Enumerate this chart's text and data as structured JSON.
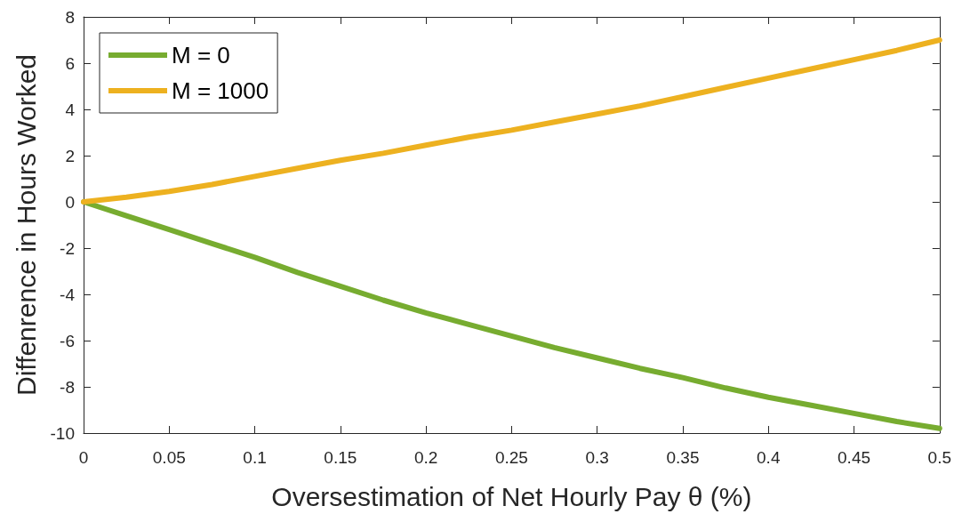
{
  "chart_data": {
    "type": "line",
    "xlabel": "Oversestimation of Net Hourly Pay θ (%)",
    "ylabel": "Diffenrence in Hours Worked",
    "x": [
      0,
      0.025,
      0.05,
      0.075,
      0.1,
      0.125,
      0.15,
      0.175,
      0.2,
      0.225,
      0.25,
      0.275,
      0.3,
      0.325,
      0.35,
      0.375,
      0.4,
      0.425,
      0.45,
      0.475,
      0.5
    ],
    "series": [
      {
        "name": "M = 0",
        "color": "#77ac30",
        "values": [
          0,
          -0.6,
          -1.2,
          -1.8,
          -2.4,
          -3.05,
          -3.65,
          -4.25,
          -4.8,
          -5.3,
          -5.8,
          -6.3,
          -6.75,
          -7.2,
          -7.6,
          -8.05,
          -8.45,
          -8.8,
          -9.15,
          -9.5,
          -9.8
        ]
      },
      {
        "name": "M = 1000",
        "color": "#edb120",
        "values": [
          0,
          0.2,
          0.45,
          0.75,
          1.1,
          1.45,
          1.8,
          2.1,
          2.45,
          2.8,
          3.1,
          3.45,
          3.8,
          4.15,
          4.55,
          4.95,
          5.35,
          5.75,
          6.15,
          6.55,
          7
        ]
      }
    ],
    "xlim": [
      0,
      0.5
    ],
    "xticks": [
      0,
      0.05,
      0.1,
      0.15,
      0.2,
      0.25,
      0.3,
      0.35,
      0.4,
      0.45,
      0.5
    ],
    "ylim": [
      -10,
      8
    ],
    "yticks": [
      -10,
      -8,
      -6,
      -4,
      -2,
      0,
      2,
      4,
      6,
      8
    ],
    "grid": false,
    "legend": "top left",
    "marker": "none",
    "line_style": "solid"
  }
}
